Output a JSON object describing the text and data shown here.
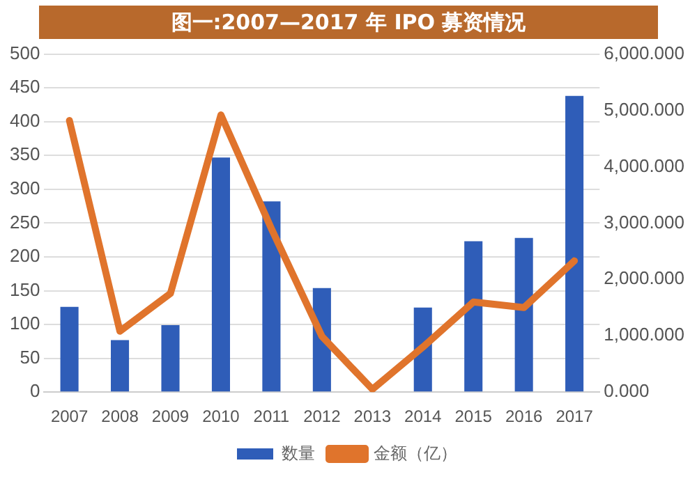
{
  "chart_data": {
    "type": "bar",
    "title": "图一:2007—2017 年 IPO 募资情况",
    "categories": [
      "2007",
      "2008",
      "2009",
      "2010",
      "2011",
      "2012",
      "2013",
      "2014",
      "2015",
      "2016",
      "2017"
    ],
    "series": [
      {
        "name": "数量",
        "color": "#2f5db8",
        "values": [
          126,
          77,
          99,
          347,
          282,
          154,
          0,
          125,
          223,
          228,
          438
        ]
      },
      {
        "name": "金额（亿）",
        "type": "line",
        "axis": "y2",
        "color": "#e0742c",
        "values": [
          4820,
          1080,
          1750,
          4920,
          2900,
          990,
          50,
          800,
          1600,
          1500,
          2330
        ]
      }
    ],
    "ylim": [
      0,
      500
    ],
    "yticks": [
      0,
      50,
      100,
      150,
      200,
      250,
      300,
      350,
      400,
      450,
      500
    ],
    "y2lim": [
      0,
      6000
    ],
    "y2ticks": [
      {
        "value": 0,
        "label": "0.000"
      },
      {
        "value": 1000,
        "label": "1,000.000"
      },
      {
        "value": 2000,
        "label": "2,000.000"
      },
      {
        "value": 3000,
        "label": "3,000.000"
      },
      {
        "value": 4000,
        "label": "4,000.000"
      },
      {
        "value": 5000,
        "label": "5,000.000"
      },
      {
        "value": 6000,
        "label": "6,000.000"
      }
    ],
    "grid": "y",
    "legend": "bottom",
    "marker": "none"
  }
}
